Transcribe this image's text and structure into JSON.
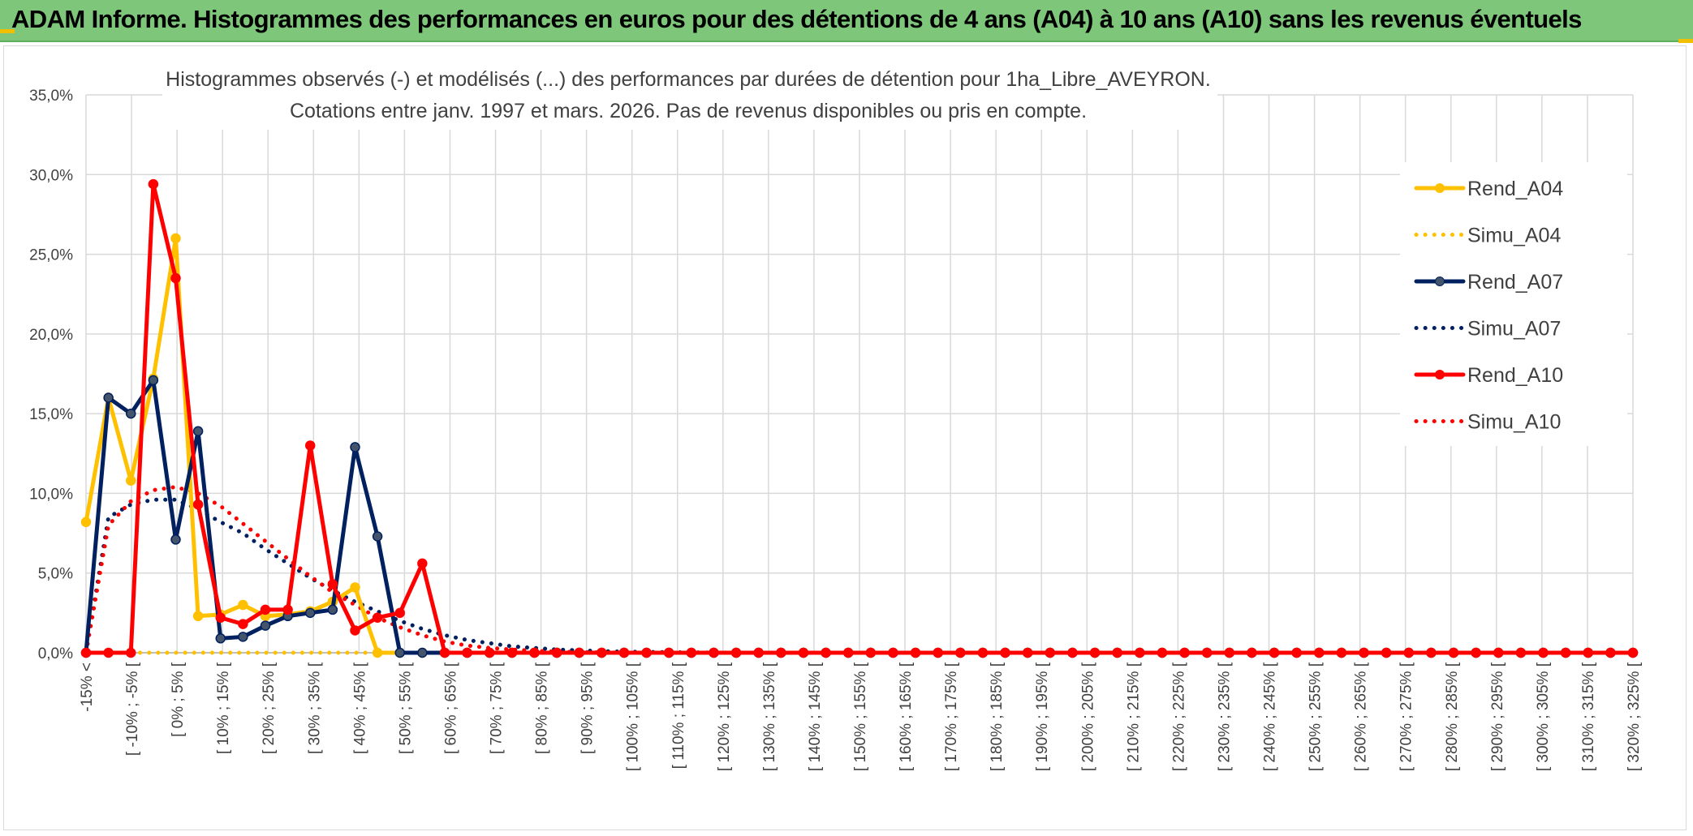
{
  "banner": {
    "title": "ADAM Informe. Histogrammes des performances en euros pour des détentions de 4 ans (A04) à 10 ans (A10) sans les revenus éventuels"
  },
  "colors": {
    "banner_bg": "#7dc67a",
    "A04": "#ffc000",
    "A07": "#002060",
    "A10": "#ff0000",
    "grid": "#d9d9d9"
  },
  "chart_data": {
    "type": "line",
    "title": "Histogrammes observés (-) et modélisés (...) des performances par durées de détention pour 1ha_Libre_AVEYRON.",
    "subtitle": "Cotations entre janv. 1997 et mars. 2026. Pas de revenus disponibles ou pris en compte.",
    "xlabel": "",
    "ylabel": "",
    "ylim": [
      0,
      35
    ],
    "y_ticks": [
      "0,0%",
      "5,0%",
      "10,0%",
      "15,0%",
      "20,0%",
      "25,0%",
      "30,0%",
      "35,0%"
    ],
    "grid": true,
    "legend_position": "right",
    "x_labels": [
      "-15% <",
      "[ -10% ; -5% [",
      "[ 0% ; 5% [",
      "[ 10% ; 15% [",
      "[ 20% ; 25% [",
      "[ 30% ; 35% [",
      "[ 40% ; 45% [",
      "[ 50% ; 55% [",
      "[ 60% ; 65% [",
      "[ 70% ; 75% [",
      "[ 80% ; 85% [",
      "[ 90% ; 95% [",
      "[ 100% ; 105% [",
      "[ 110% ; 115% [",
      "[ 120% ; 125% [",
      "[ 130% ; 135% [",
      "[ 140% ; 145% [",
      "[ 150% ; 155% [",
      "[ 160% ; 165% [",
      "[ 170% ; 175% [",
      "[ 180% ; 185% [",
      "[ 190% ; 195% [",
      "[ 200% ; 205% [",
      "[ 210% ; 215% [",
      "[ 220% ; 225% [",
      "[ 230% ; 235% [",
      "[ 240% ; 245% [",
      "[ 250% ; 255% [",
      "[ 260% ; 265% [",
      "[ 270% ; 275% [",
      "[ 280% ; 285% [",
      "[ 290% ; 295% [",
      "[ 300% ; 305% [",
      "[ 310% ; 315% [",
      "[ 320% ; 325% ["
    ],
    "series": [
      {
        "name": "Rend_A04",
        "style": "solid",
        "color": "#ffc000",
        "values": [
          8.2,
          16.0,
          10.8,
          17.2,
          26.0,
          2.3,
          2.4,
          3.0,
          2.3,
          2.4,
          2.6,
          3.2,
          4.1,
          0.0,
          0.0,
          0.0,
          0.0,
          0.0,
          0.0,
          0.0,
          0.0,
          0.0,
          0.0,
          0.0,
          0.0,
          0.0,
          0.0,
          0.0,
          0.0,
          0.0,
          0.0,
          0.0,
          0.0,
          0.0,
          0.0,
          0.0,
          0.0,
          0.0,
          0.0,
          0.0,
          0.0,
          0.0,
          0.0,
          0.0,
          0.0,
          0.0,
          0.0,
          0.0,
          0.0,
          0.0,
          0.0,
          0.0,
          0.0,
          0.0,
          0.0,
          0.0,
          0.0,
          0.0,
          0.0,
          0.0,
          0.0,
          0.0,
          0.0,
          0.0,
          0.0,
          0.0,
          0.0,
          0.0,
          0.0,
          0.0
        ]
      },
      {
        "name": "Simu_A04",
        "style": "dotted",
        "color": "#ffc000",
        "values": [
          0.0,
          0.0,
          0.0,
          0.0,
          0.0,
          0.0,
          0.0,
          0.0,
          0.0,
          0.0,
          0.0,
          0.0,
          0.0,
          0.0,
          0.0,
          0.0,
          0.0,
          0.0,
          0.0,
          0.0,
          0.0,
          0.0,
          0.0,
          0.0,
          0.0,
          0.0,
          0.0,
          0.0,
          0.0,
          0.0,
          0.0,
          0.0,
          0.0,
          0.0,
          0.0,
          0.0,
          0.0,
          0.0,
          0.0,
          0.0,
          0.0,
          0.0,
          0.0,
          0.0,
          0.0,
          0.0,
          0.0,
          0.0,
          0.0,
          0.0,
          0.0,
          0.0,
          0.0,
          0.0,
          0.0,
          0.0,
          0.0,
          0.0,
          0.0,
          0.0,
          0.0,
          0.0,
          0.0,
          0.0,
          0.0,
          0.0,
          0.0,
          0.0,
          0.0,
          0.0
        ]
      },
      {
        "name": "Rend_A07",
        "style": "solid",
        "color": "#002060",
        "values": [
          0.0,
          16.0,
          15.0,
          17.1,
          7.1,
          13.9,
          0.9,
          1.0,
          1.7,
          2.3,
          2.5,
          2.7,
          12.9,
          7.3,
          0.0,
          0.0,
          0.0,
          0.0,
          0.0,
          0.0,
          0.0,
          0.0,
          0.0,
          0.0,
          0.0,
          0.0,
          0.0,
          0.0,
          0.0,
          0.0,
          0.0,
          0.0,
          0.0,
          0.0,
          0.0,
          0.0,
          0.0,
          0.0,
          0.0,
          0.0,
          0.0,
          0.0,
          0.0,
          0.0,
          0.0,
          0.0,
          0.0,
          0.0,
          0.0,
          0.0,
          0.0,
          0.0,
          0.0,
          0.0,
          0.0,
          0.0,
          0.0,
          0.0,
          0.0,
          0.0,
          0.0,
          0.0,
          0.0,
          0.0,
          0.0,
          0.0,
          0.0,
          0.0,
          0.0,
          0.0
        ]
      },
      {
        "name": "Simu_A07",
        "style": "dotted",
        "color": "#002060",
        "values": [
          0.0,
          8.5,
          9.3,
          9.6,
          9.6,
          9.0,
          8.2,
          7.5,
          6.5,
          5.6,
          4.7,
          3.9,
          3.2,
          2.6,
          2.0,
          1.5,
          1.1,
          0.8,
          0.6,
          0.4,
          0.3,
          0.2,
          0.15,
          0.1,
          0.07,
          0.05,
          0.03,
          0.02,
          0.01,
          0.0,
          0.0,
          0.0,
          0.0,
          0.0,
          0.0,
          0.0,
          0.0,
          0.0,
          0.0,
          0.0,
          0.0,
          0.0,
          0.0,
          0.0,
          0.0,
          0.0,
          0.0,
          0.0,
          0.0,
          0.0,
          0.0,
          0.0,
          0.0,
          0.0,
          0.0,
          0.0,
          0.0,
          0.0,
          0.0,
          0.0,
          0.0,
          0.0,
          0.0,
          0.0,
          0.0,
          0.0,
          0.0,
          0.0,
          0.0,
          0.0
        ]
      },
      {
        "name": "Rend_A10",
        "style": "solid",
        "color": "#ff0000",
        "values": [
          0.0,
          0.0,
          0.0,
          29.4,
          23.5,
          9.3,
          2.2,
          1.8,
          2.7,
          2.7,
          13.0,
          4.3,
          1.4,
          2.2,
          2.5,
          5.6,
          0.0,
          0.0,
          0.0,
          0.0,
          0.0,
          0.0,
          0.0,
          0.0,
          0.0,
          0.0,
          0.0,
          0.0,
          0.0,
          0.0,
          0.0,
          0.0,
          0.0,
          0.0,
          0.0,
          0.0,
          0.0,
          0.0,
          0.0,
          0.0,
          0.0,
          0.0,
          0.0,
          0.0,
          0.0,
          0.0,
          0.0,
          0.0,
          0.0,
          0.0,
          0.0,
          0.0,
          0.0,
          0.0,
          0.0,
          0.0,
          0.0,
          0.0,
          0.0,
          0.0,
          0.0,
          0.0,
          0.0,
          0.0,
          0.0,
          0.0,
          0.0,
          0.0,
          0.0,
          0.0
        ]
      },
      {
        "name": "Simu_A10",
        "style": "dotted",
        "color": "#ff0000",
        "values": [
          0.0,
          8.0,
          9.5,
          10.2,
          10.4,
          10.0,
          9.2,
          8.1,
          7.0,
          5.9,
          4.8,
          3.8,
          3.0,
          2.2,
          1.6,
          1.1,
          0.7,
          0.45,
          0.3,
          0.2,
          0.12,
          0.07,
          0.04,
          0.02,
          0.01,
          0.0,
          0.0,
          0.0,
          0.0,
          0.0,
          0.0,
          0.0,
          0.0,
          0.0,
          0.0,
          0.0,
          0.0,
          0.0,
          0.0,
          0.0,
          0.0,
          0.0,
          0.0,
          0.0,
          0.0,
          0.0,
          0.0,
          0.0,
          0.0,
          0.0,
          0.0,
          0.0,
          0.0,
          0.0,
          0.0,
          0.0,
          0.0,
          0.0,
          0.0,
          0.0,
          0.0,
          0.0,
          0.0,
          0.0,
          0.0,
          0.0,
          0.0,
          0.0,
          0.0,
          0.0
        ]
      }
    ]
  }
}
